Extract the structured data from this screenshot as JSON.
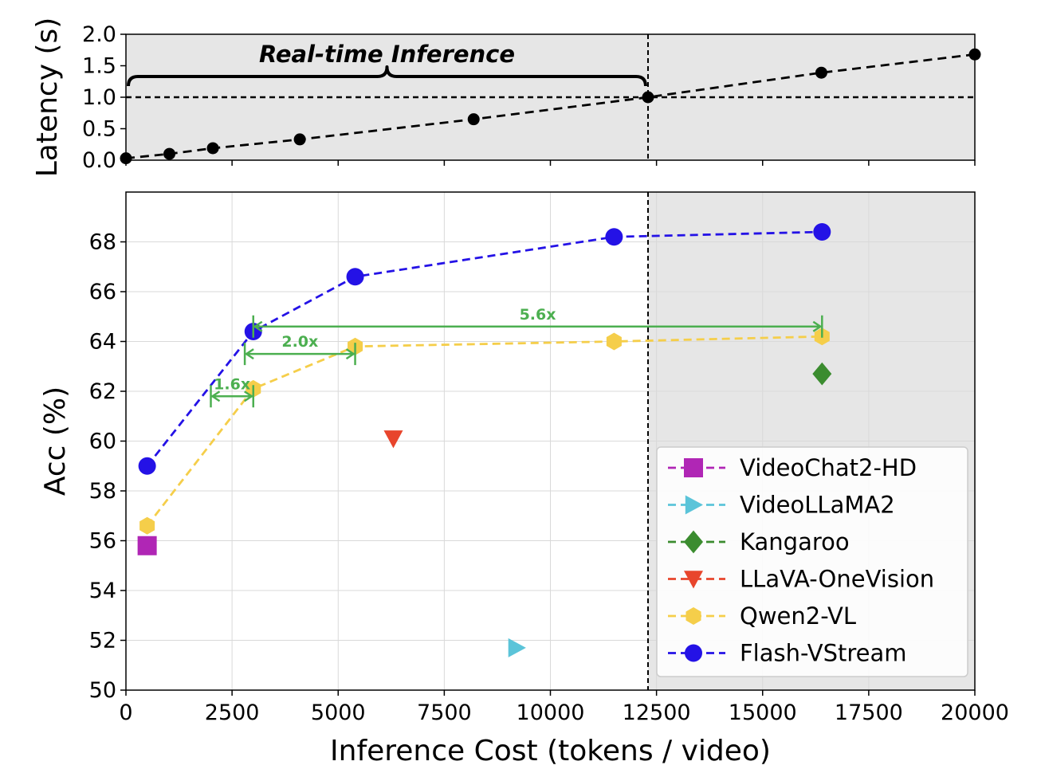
{
  "chart_data": [
    {
      "type": "line",
      "ylabel": "Latency (s)",
      "xlim": [
        0,
        20000
      ],
      "ylim": [
        0,
        2.0
      ],
      "yticks": [
        "0.0",
        "0.5",
        "1.0",
        "1.5",
        "2.0"
      ],
      "shaded_region": "x > 12300",
      "reference_lines": {
        "x": 12300,
        "y": 1.0
      },
      "annotation": "Real-time Inference",
      "series": [
        {
          "color": "#000000",
          "points": [
            [
              0,
              0.03
            ],
            [
              1024,
              0.1
            ],
            [
              2048,
              0.19
            ],
            [
              4096,
              0.33
            ],
            [
              8192,
              0.65
            ],
            [
              12300,
              1.0
            ],
            [
              16384,
              1.39
            ],
            [
              20000,
              1.68
            ]
          ]
        }
      ]
    },
    {
      "type": "line",
      "xlabel": "Inference Cost (tokens / video)",
      "ylabel": "Acc (%)",
      "xlim": [
        0,
        20000
      ],
      "ylim": [
        50,
        70
      ],
      "xticks": [
        "0",
        "2500",
        "5000",
        "7500",
        "10000",
        "12500",
        "15000",
        "17500",
        "20000"
      ],
      "yticks": [
        "50",
        "52",
        "54",
        "56",
        "58",
        "60",
        "62",
        "64",
        "66",
        "68"
      ],
      "shaded_region": "x > 12300",
      "reference_lines": {
        "x": 12300
      },
      "legend_position": "bottom-right",
      "series": [
        {
          "name": "VideoChat2-HD",
          "color": "#b026b5",
          "marker": "square",
          "points": [
            [
              500,
              55.8
            ]
          ]
        },
        {
          "name": "VideoLLaMA2",
          "color": "#5bc4d9",
          "marker": "triangle-right",
          "points": [
            [
              9200,
              51.7
            ]
          ]
        },
        {
          "name": "Kangaroo",
          "color": "#3b8c2f",
          "marker": "diamond",
          "points": [
            [
              16400,
              62.7
            ]
          ]
        },
        {
          "name": "LLaVA-OneVision",
          "color": "#e8452c",
          "marker": "triangle-down",
          "points": [
            [
              6300,
              60.1
            ]
          ]
        },
        {
          "name": "Qwen2-VL",
          "color": "#f5ce4a",
          "marker": "hexagon",
          "points": [
            [
              500,
              56.6
            ],
            [
              3000,
              62.1
            ],
            [
              5400,
              63.8
            ],
            [
              11500,
              64.0
            ],
            [
              16400,
              64.2
            ]
          ]
        },
        {
          "name": "Flash-VStream",
          "color": "#2412e6",
          "marker": "circle",
          "points": [
            [
              500,
              59.0
            ],
            [
              3000,
              64.4
            ],
            [
              5400,
              66.6
            ],
            [
              11500,
              68.2
            ],
            [
              16400,
              68.4
            ]
          ]
        }
      ],
      "annotations": [
        {
          "label": "1.6x",
          "from": 2000,
          "to": 3000,
          "y": 61.8
        },
        {
          "label": "2.0x",
          "from": 2800,
          "to": 5400,
          "y": 63.5
        },
        {
          "label": "5.6x",
          "from": 3000,
          "to": 16400,
          "y": 64.6
        }
      ]
    }
  ]
}
